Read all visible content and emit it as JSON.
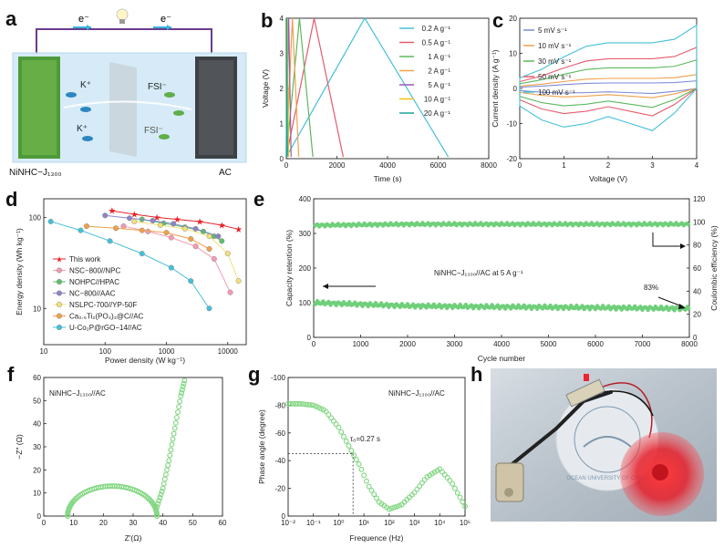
{
  "panels": {
    "a": "a",
    "b": "b",
    "c": "c",
    "d": "d",
    "e": "e",
    "f": "f",
    "g": "g",
    "h": "h"
  },
  "panel_a": {
    "electron_left": "e⁻",
    "electron_right": "e⁻",
    "ion_k1": "K⁺",
    "ion_k2": "K⁺",
    "ion_fsi1": "FSI⁻",
    "ion_fsi2": "FSI⁻",
    "label_left": "NiNHC−J₁₃₀₀",
    "label_right": "AC",
    "colors": {
      "wire": "#6b3b8e",
      "electrolyte": "#cfe6f4",
      "anode": "#4e9a3a",
      "cathode": "#3d4146"
    }
  },
  "panel_b": {
    "xlabel": "Time (s)",
    "ylabel": "Voltage (V)",
    "xticks": [
      "0",
      "2000",
      "4000",
      "6000",
      "8000"
    ],
    "yticks": [
      "0",
      "1",
      "2",
      "3",
      "4"
    ]
  },
  "panel_c": {
    "xlabel": "Voltage (V)",
    "ylabel": "Current density (A g⁻¹)",
    "xticks": [
      "0",
      "1",
      "2",
      "3",
      "4"
    ],
    "yticks": [
      "-20",
      "-10",
      "0",
      "10",
      "20"
    ]
  },
  "panel_d": {
    "xlabel": "Power density (W kg⁻¹)",
    "ylabel": "Energy density (Wh kg⁻¹)",
    "xticks": [
      "10",
      "100",
      "1000",
      "10000"
    ],
    "yticks": [
      "10",
      "100"
    ]
  },
  "panel_e": {
    "xlabel": "Cycle number",
    "ylabel_left": "Capacity retention (%)",
    "ylabel_right": "Coulombic efficiency (%)",
    "xticks": [
      "0",
      "1000",
      "2000",
      "3000",
      "4000",
      "5000",
      "6000",
      "7000",
      "8000"
    ],
    "yticks_left": [
      "0",
      "100",
      "200",
      "300",
      "400"
    ],
    "yticks_right": [
      "0",
      "20",
      "40",
      "60",
      "80",
      "100",
      "120"
    ],
    "annotation": "NiNHC−J₁₃₀₀//AC at 5 A g⁻¹",
    "retention_label": "83%"
  },
  "panel_f": {
    "xlabel": "Z′(Ω)",
    "ylabel": "−Z″ (Ω)",
    "xticks": [
      "0",
      "10",
      "20",
      "30",
      "40",
      "50",
      "60"
    ],
    "yticks": [
      "0",
      "10",
      "20",
      "30",
      "40",
      "50",
      "60"
    ],
    "annotation": "NiNHC−J₁₃₀₀//AC"
  },
  "panel_g": {
    "xlabel": "Frequence (Hz)",
    "ylabel": "Phase angle (degree)",
    "xticks": [
      "10⁻²",
      "10⁻¹",
      "10⁰",
      "10¹",
      "10²",
      "10³",
      "10⁴",
      "10⁵"
    ],
    "yticks": [
      "-100",
      "-80",
      "-60",
      "-40",
      "-20",
      "0"
    ],
    "annotation": "NiNHC−J₁₃₀₀//AC",
    "tau_label": "τ₀=0.27 s"
  },
  "panel_h": {
    "photo_text": "OCEAN UNIVERSITY OF CHINA"
  },
  "chart_data": [
    {
      "id": "b",
      "type": "line",
      "title": "",
      "xlabel": "Time (s)",
      "ylabel": "Voltage (V)",
      "xlim": [
        0,
        8000
      ],
      "ylim": [
        0,
        4
      ],
      "series": [
        {
          "name": "0.2 A g⁻¹",
          "color": "#45c0d8",
          "x": [
            0,
            3100,
            6400
          ],
          "y": [
            0.05,
            4,
            0.05
          ]
        },
        {
          "name": "0.5 A g⁻¹",
          "color": "#e55b6e",
          "x": [
            0,
            1100,
            2250
          ],
          "y": [
            0.05,
            4,
            0.05
          ]
        },
        {
          "name": "1 A g⁻¹",
          "color": "#5cb85c",
          "x": [
            0,
            520,
            1050
          ],
          "y": [
            0.05,
            4,
            0.05
          ]
        },
        {
          "name": "2 A g⁻¹",
          "color": "#f0a04b",
          "x": [
            0,
            240,
            490
          ],
          "y": [
            0.05,
            4,
            0.05
          ]
        },
        {
          "name": "5 A g⁻¹",
          "color": "#9b59b6",
          "x": [
            0,
            95,
            190
          ],
          "y": [
            0.05,
            4,
            0.05
          ]
        },
        {
          "name": "10 A g⁻¹",
          "color": "#f1c40f",
          "x": [
            0,
            45,
            90
          ],
          "y": [
            0.05,
            4,
            0.05
          ]
        },
        {
          "name": "20 A g⁻¹",
          "color": "#1aa39a",
          "x": [
            0,
            20,
            40
          ],
          "y": [
            0.05,
            4,
            0.05
          ]
        }
      ]
    },
    {
      "id": "c",
      "type": "line",
      "title": "",
      "xlabel": "Voltage (V)",
      "ylabel": "Current density (A g⁻¹)",
      "xlim": [
        0,
        4
      ],
      "ylim": [
        -20,
        20
      ],
      "series": [
        {
          "name": "5 mV s⁻¹",
          "color": "#7e8ad6",
          "scale": 0.12
        },
        {
          "name": "10 mV s⁻¹",
          "color": "#f0a04b",
          "scale": 0.22
        },
        {
          "name": "30 mV s⁻¹",
          "color": "#5cb85c",
          "scale": 0.45
        },
        {
          "name": "50 mV s⁻¹",
          "color": "#e55b6e",
          "scale": 0.65
        },
        {
          "name": "100 mV s⁻¹",
          "color": "#45c0d8",
          "scale": 1.0
        }
      ],
      "cv_shape": {
        "x": [
          0,
          0.5,
          1,
          1.5,
          2,
          2.5,
          3,
          3.5,
          4
        ],
        "upper": [
          3,
          5.5,
          9,
          12,
          13,
          13,
          13,
          14,
          18
        ],
        "lower": [
          -5,
          -9,
          -11,
          -10,
          -8,
          -10,
          -12,
          -7,
          0
        ]
      }
    },
    {
      "id": "d",
      "type": "scatter",
      "title": "",
      "xlabel": "Power density (W kg⁻¹)",
      "ylabel": "Energy density (Wh kg⁻¹)",
      "xscale": "log",
      "yscale": "log",
      "xlim": [
        10,
        20000
      ],
      "ylim": [
        4,
        160
      ],
      "series": [
        {
          "name": "This work",
          "color": "#e8232a",
          "x": [
            130,
            300,
            700,
            1500,
            3500,
            8000,
            15000
          ],
          "y": [
            118,
            108,
            100,
            95,
            90,
            82,
            74
          ]
        },
        {
          "name": "NSC−800//NPC",
          "color": "#f39bb0",
          "x": [
            200,
            500,
            1200,
            3000,
            6000,
            11000
          ],
          "y": [
            80,
            70,
            60,
            48,
            35,
            15
          ]
        },
        {
          "name": "NOHPC//HPAC",
          "color": "#5dbf6a",
          "x": [
            400,
            900,
            2000,
            4000,
            6000,
            8000
          ],
          "y": [
            95,
            86,
            78,
            70,
            62,
            55
          ]
        },
        {
          "name": "NC−800//AAC",
          "color": "#8a86c8",
          "x": [
            100,
            250,
            600,
            1300,
            3000,
            7000
          ],
          "y": [
            105,
            98,
            92,
            85,
            75,
            62
          ]
        },
        {
          "name": "NSLPC-700//YP-50F",
          "color": "#f3e07a",
          "x": [
            300,
            800,
            2000,
            5000,
            10000,
            15000
          ],
          "y": [
            90,
            82,
            75,
            62,
            40,
            20
          ]
        },
        {
          "name": "Ca₀.₅Ti₂(PO₄)₃@C//AC",
          "color": "#f0a04b",
          "x": [
            50,
            150,
            400,
            1000,
            2500,
            5000
          ],
          "y": [
            80,
            76,
            72,
            68,
            58,
            45
          ]
        },
        {
          "name": "U-Co₂P@rGO−14//AC",
          "color": "#45c0d8",
          "x": [
            13,
            40,
            120,
            400,
            1200,
            2500,
            5000
          ],
          "y": [
            90,
            72,
            55,
            40,
            28,
            20,
            10
          ]
        }
      ]
    },
    {
      "id": "e",
      "type": "line",
      "title": "",
      "xlabel": "Cycle number",
      "ylim_left": [
        0,
        400
      ],
      "ylim_right": [
        0,
        120
      ],
      "xlim": [
        0,
        8000
      ],
      "series": [
        {
          "name": "Capacity retention",
          "axis": "left",
          "color": "#6fcf7a",
          "x": [
            0,
            2000,
            4000,
            6000,
            8000
          ],
          "y": [
            100,
            91,
            88,
            86,
            83
          ]
        },
        {
          "name": "Coulombic efficiency",
          "axis": "right",
          "color": "#6fcf7a",
          "x": [
            0,
            2000,
            4000,
            6000,
            8000
          ],
          "y": [
            97,
            98,
            98,
            98,
            98
          ]
        }
      ]
    },
    {
      "id": "f",
      "type": "scatter",
      "title": "",
      "xlabel": "Z′(Ω)",
      "ylabel": "−Z″ (Ω)",
      "xlim": [
        0,
        60
      ],
      "ylim": [
        0,
        60
      ],
      "series": [
        {
          "name": "EIS",
          "color": "#7fd67f",
          "semicircle": {
            "start": 8,
            "end": 38,
            "height": 13
          },
          "tail": {
            "x": [
              38,
              40,
              42,
              44,
              46,
              47.5
            ],
            "y": [
              4,
              12,
              24,
              38,
              52,
              60
            ]
          }
        }
      ]
    },
    {
      "id": "g",
      "type": "line",
      "title": "",
      "xlabel": "Frequence (Hz)",
      "ylabel": "Phase angle (degree)",
      "xscale": "log",
      "xlim": [
        0.01,
        100000
      ],
      "ylim": [
        -100,
        0
      ],
      "series": [
        {
          "name": "Phase",
          "color": "#7fd67f",
          "x": [
            0.01,
            0.03,
            0.1,
            0.3,
            1,
            2,
            3.7,
            7,
            15,
            40,
            100,
            300,
            1000,
            3000,
            10000,
            30000,
            100000
          ],
          "y": [
            -81,
            -81,
            -80,
            -76,
            -64,
            -54,
            -45,
            -36,
            -22,
            -10,
            -5,
            -8,
            -17,
            -28,
            -34,
            -24,
            -7
          ]
        }
      ],
      "tau0_frequency_hz": 3.7,
      "tau0_phase_deg": -45
    }
  ]
}
